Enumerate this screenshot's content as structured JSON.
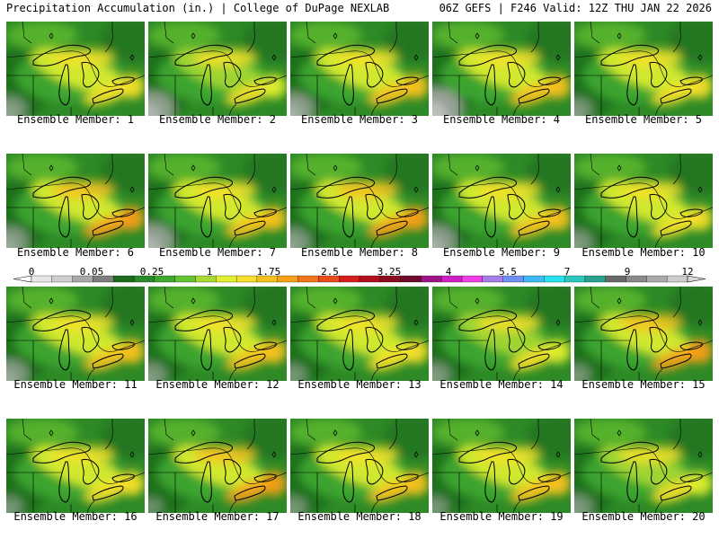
{
  "header": {
    "left": "Precipitation Accumulation (in.) | College of DuPage NEXLAB",
    "right": "06Z GEFS | F246 Valid: 12Z THU JAN 22 2026"
  },
  "caption_prefix": "Ensemble Member:",
  "members": [
    {
      "label": "Ensemble Member: 1",
      "west_dry": 0.4,
      "wet": 0.5
    },
    {
      "label": "Ensemble Member: 2",
      "west_dry": 0.7,
      "wet": 0.4
    },
    {
      "label": "Ensemble Member: 3",
      "west_dry": 0.6,
      "wet": 0.6
    },
    {
      "label": "Ensemble Member: 4",
      "west_dry": 0.9,
      "wet": 0.6
    },
    {
      "label": "Ensemble Member: 5",
      "west_dry": 0.3,
      "wet": 0.5
    },
    {
      "label": "Ensemble Member: 6",
      "west_dry": 0.5,
      "wet": 0.9
    },
    {
      "label": "Ensemble Member: 7",
      "west_dry": 0.7,
      "wet": 0.6
    },
    {
      "label": "Ensemble Member: 8",
      "west_dry": 0.4,
      "wet": 0.8
    },
    {
      "label": "Ensemble Member: 9",
      "west_dry": 0.6,
      "wet": 0.6
    },
    {
      "label": "Ensemble Member: 10",
      "west_dry": 0.3,
      "wet": 0.5
    },
    {
      "label": "Ensemble Member: 11",
      "west_dry": 0.5,
      "wet": 0.6
    },
    {
      "label": "Ensemble Member: 12",
      "west_dry": 0.3,
      "wet": 0.6
    },
    {
      "label": "Ensemble Member: 13",
      "west_dry": 0.2,
      "wet": 0.5
    },
    {
      "label": "Ensemble Member: 14",
      "west_dry": 0.3,
      "wet": 0.4
    },
    {
      "label": "Ensemble Member: 15",
      "west_dry": 0.2,
      "wet": 0.9
    },
    {
      "label": "Ensemble Member: 16",
      "west_dry": 0.2,
      "wet": 0.5
    },
    {
      "label": "Ensemble Member: 17",
      "west_dry": 0.1,
      "wet": 0.9
    },
    {
      "label": "Ensemble Member: 18",
      "west_dry": 0.2,
      "wet": 0.7
    },
    {
      "label": "Ensemble Member: 19",
      "west_dry": 0.2,
      "wet": 0.6
    },
    {
      "label": "Ensemble Member: 20",
      "west_dry": 0.3,
      "wet": 0.4
    }
  ],
  "colorbar": {
    "ticks": [
      "0",
      "0.05",
      "0.25",
      "1",
      "1.75",
      "2.5",
      "3.25",
      "4",
      "5.5",
      "7",
      "9",
      "12"
    ],
    "colors": [
      "#e6e6e6",
      "#cfcfcf",
      "#a8a8a8",
      "#7e7e7e",
      "#1d6b1d",
      "#2a8a2a",
      "#3ea830",
      "#66c231",
      "#a9d934",
      "#e1ef2f",
      "#f6e02a",
      "#f8c21e",
      "#f7a01a",
      "#f3751b",
      "#ea4b1c",
      "#d71e1e",
      "#b10f1e",
      "#8e0b1f",
      "#6e0a2e",
      "#9e1488",
      "#cf1fc4",
      "#ee3fe7",
      "#a57ee8",
      "#6f8ff2",
      "#3fb9f4",
      "#28e0ef",
      "#29c9be",
      "#27a28e",
      "#686868",
      "#8a8a8a",
      "#aaaaaa",
      "#cdcdcd"
    ]
  }
}
